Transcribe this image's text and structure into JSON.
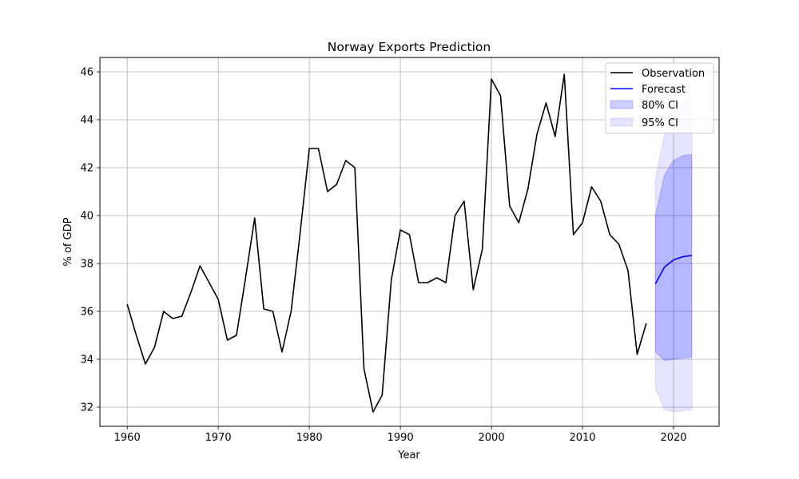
{
  "chart_data": {
    "type": "line",
    "title": "Norway Exports Prediction",
    "xlabel": "Year",
    "ylabel": "% of GDP",
    "xlim": [
      1957,
      2025
    ],
    "ylim": [
      31.2,
      46.6
    ],
    "xticks": [
      1960,
      1970,
      1980,
      1990,
      2000,
      2010,
      2020
    ],
    "yticks": [
      32,
      34,
      36,
      38,
      40,
      42,
      44,
      46
    ],
    "grid": true,
    "legend_position": "top-right",
    "colors": {
      "observation": "#000000",
      "forecast": "#0000ff",
      "ci80": "#0000ff",
      "ci95": "#0000ff",
      "grid": "#b0b0b0"
    },
    "series": [
      {
        "name": "Observation",
        "x": [
          1960,
          1961,
          1962,
          1963,
          1964,
          1965,
          1966,
          1967,
          1968,
          1969,
          1970,
          1971,
          1972,
          1973,
          1974,
          1975,
          1976,
          1977,
          1978,
          1979,
          1980,
          1981,
          1982,
          1983,
          1984,
          1985,
          1986,
          1987,
          1988,
          1989,
          1990,
          1991,
          1992,
          1993,
          1994,
          1995,
          1996,
          1997,
          1998,
          1999,
          2000,
          2001,
          2002,
          2003,
          2004,
          2005,
          2006,
          2007,
          2008,
          2009,
          2010,
          2011,
          2012,
          2013,
          2014,
          2015,
          2016,
          2017
        ],
        "values": [
          36.3,
          35.0,
          33.8,
          34.5,
          36.0,
          35.7,
          35.8,
          36.8,
          37.9,
          37.2,
          36.5,
          34.8,
          35.0,
          37.4,
          39.9,
          36.1,
          36.0,
          34.3,
          36.0,
          39.3,
          42.8,
          42.8,
          41.0,
          41.3,
          42.3,
          42.0,
          33.6,
          31.8,
          32.5,
          37.3,
          39.4,
          39.2,
          37.2,
          37.2,
          37.4,
          37.2,
          40.0,
          40.6,
          36.9,
          38.6,
          45.7,
          45.0,
          40.4,
          39.7,
          41.1,
          43.4,
          44.7,
          43.3,
          45.9,
          39.2,
          39.7,
          41.2,
          40.6,
          39.2,
          38.8,
          37.7,
          34.2,
          35.5
        ]
      },
      {
        "name": "Forecast",
        "x": [
          2018,
          2019,
          2020,
          2021,
          2022
        ],
        "values": [
          37.15,
          37.85,
          38.15,
          38.28,
          38.33
        ]
      }
    ],
    "bands": [
      {
        "name": "80% CI",
        "x": [
          2018,
          2019,
          2020,
          2021,
          2022
        ],
        "lower": [
          34.3,
          33.95,
          34.0,
          34.05,
          34.1
        ],
        "upper": [
          40.0,
          41.7,
          42.3,
          42.5,
          42.55
        ]
      },
      {
        "name": "95% CI",
        "x": [
          2018,
          2019,
          2020,
          2021,
          2022
        ],
        "lower": [
          32.8,
          31.9,
          31.8,
          31.85,
          31.88
        ],
        "upper": [
          41.5,
          43.4,
          44.3,
          44.7,
          44.8
        ]
      }
    ],
    "legend": [
      "Observation",
      "Forecast",
      "80% CI",
      "95% CI"
    ]
  }
}
